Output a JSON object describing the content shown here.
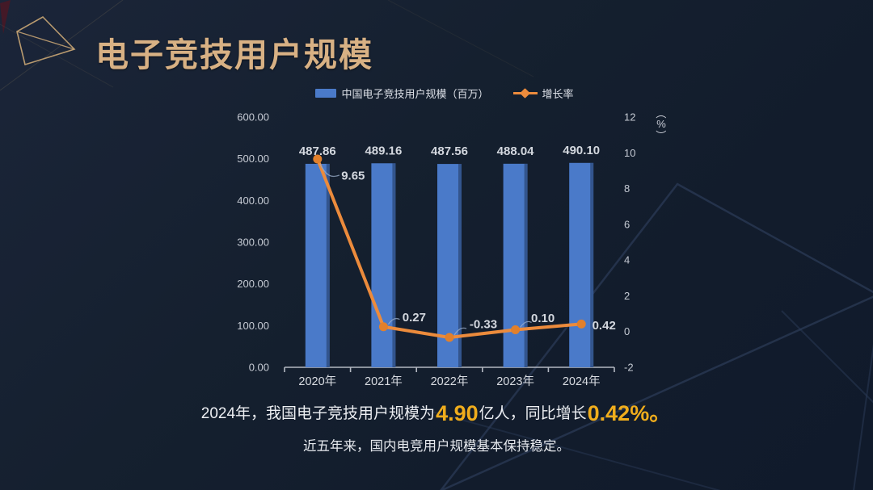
{
  "title": "电子竞技用户规模",
  "chart_data": {
    "type": "bar+line combo",
    "categories": [
      "2020年",
      "2021年",
      "2022年",
      "2023年",
      "2024年"
    ],
    "series": [
      {
        "name": "中国电子竞技用户规模（百万）",
        "type": "bar",
        "axis": "left",
        "color": "#4a7ac9",
        "values": [
          487.86,
          489.16,
          487.56,
          488.04,
          490.1
        ],
        "labels": [
          "487.86",
          "489.16",
          "487.56",
          "488.04",
          "490.10"
        ]
      },
      {
        "name": "增长率",
        "type": "line",
        "axis": "right",
        "color": "#ec8b3c",
        "marker_color": "#e2802b",
        "values": [
          9.65,
          0.27,
          -0.33,
          0.1,
          0.42
        ],
        "labels": [
          "9.65",
          "0.27",
          "-0.33",
          "0.10",
          "0.42"
        ]
      }
    ],
    "left_axis": {
      "min": 0,
      "max": 600,
      "step": 100,
      "tick_labels": [
        "0.00",
        "100.00",
        "200.00",
        "300.00",
        "400.00",
        "500.00",
        "600.00"
      ]
    },
    "right_axis": {
      "min": -2,
      "max": 12,
      "step": 2,
      "tick_labels": [
        "-2",
        "0",
        "2",
        "4",
        "6",
        "8",
        "10",
        "12"
      ],
      "unit_open": "（",
      "unit": "%",
      "unit_close": "）"
    },
    "legend_position": "top",
    "grid": "off"
  },
  "summary": {
    "line1_part1": "2024年，我国电子竞技用户规模为",
    "line1_highlight1": "4.90",
    "line1_part2": "亿人，同比增长",
    "line1_highlight2": "0.42%。",
    "line2": "近五年来，国内电竞用户规模基本保持稳定。"
  },
  "colors": {
    "background": "#141e31",
    "title": "#d8b184",
    "bar": "#4a7ac9",
    "line": "#ec8b3c",
    "highlight": "#f0ad1c",
    "axis_text": "#c6cbd4",
    "decor_navy": "#2c3c59",
    "decor_gold": "#c2a172"
  }
}
